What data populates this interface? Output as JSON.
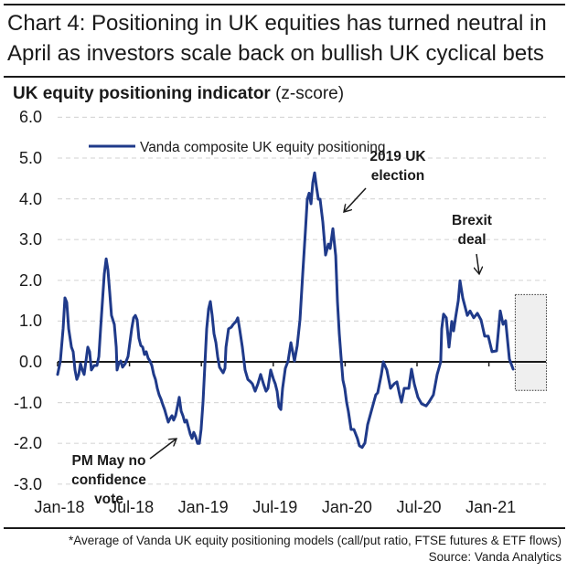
{
  "header": {
    "title": "Chart 4: Positioning in UK equities has turned neutral in April as investors scale back on bullish UK cyclical bets",
    "subtitle_bold": "UK equity positioning indicator",
    "subtitle_normal": " (z-score)"
  },
  "footer": {
    "note": "*Average of Vanda UK equity positioning models (call/put ratio, FTSE futures & ETF flows)",
    "source": "Source: Vanda Analytics"
  },
  "colors": {
    "series": "#1f3a8a",
    "grid": "#d9d9d9",
    "axis": "#1a1a1a",
    "highlight_fill": "#efefef"
  },
  "chart_data": {
    "type": "line",
    "title": "UK equity positioning indicator (z-score)",
    "xlabel": "",
    "ylabel": "z-score",
    "ylim": [
      -3.0,
      6.0
    ],
    "yticks": [
      "6.0",
      "5.0",
      "4.0",
      "3.0",
      "2.0",
      "1.0",
      "0.0",
      "-1.0",
      "-2.0",
      "-3.0"
    ],
    "ytick_values": [
      6,
      5,
      4,
      3,
      2,
      1,
      0,
      -1,
      -2,
      -3
    ],
    "xticks": [
      "Jan-18",
      "Jul-18",
      "Jan-19",
      "Jul-19",
      "Jan-20",
      "Jul-20",
      "Jan-21"
    ],
    "xtick_months": [
      0,
      6,
      12,
      18,
      24,
      30,
      36
    ],
    "xlim_months": [
      0,
      41
    ],
    "x_unit": "months since Jan-2018",
    "grid": true,
    "grid_style": "dashed horizontal",
    "legend": {
      "position": "top-left",
      "entries": [
        "Vanda composite UK equity positioning"
      ]
    },
    "highlight_region_months": [
      38.2,
      40.8
    ],
    "highlight_region_values": [
      -0.7,
      1.65
    ],
    "annotations": [
      {
        "text": "PM May no confidence vote",
        "target_month": 11.4,
        "target_value": -1.85,
        "arrow": "up-right"
      },
      {
        "text": "2019 UK election",
        "target_month": 23.6,
        "target_value": 3.5,
        "arrow": "down-left"
      },
      {
        "text": "Brexit deal",
        "target_month": 35.2,
        "target_value": 2.0,
        "arrow": "down"
      }
    ],
    "series": [
      {
        "name": "Vanda composite UK equity positioning",
        "points": [
          [
            0.0,
            -0.31
          ],
          [
            0.23,
            0.02
          ],
          [
            0.46,
            0.81
          ],
          [
            0.61,
            1.57
          ],
          [
            0.76,
            1.46
          ],
          [
            0.92,
            0.81
          ],
          [
            1.15,
            0.36
          ],
          [
            1.3,
            0.25
          ],
          [
            1.45,
            -0.2
          ],
          [
            1.6,
            -0.43
          ],
          [
            1.76,
            -0.31
          ],
          [
            1.91,
            -0.04
          ],
          [
            2.06,
            -0.2
          ],
          [
            2.21,
            -0.31
          ],
          [
            2.37,
            0.02
          ],
          [
            2.52,
            0.36
          ],
          [
            2.67,
            0.25
          ],
          [
            2.82,
            -0.2
          ],
          [
            3.05,
            -0.09
          ],
          [
            3.28,
            -0.09
          ],
          [
            3.44,
            0.13
          ],
          [
            3.59,
            0.81
          ],
          [
            3.74,
            1.48
          ],
          [
            3.89,
            2.15
          ],
          [
            4.05,
            2.53
          ],
          [
            4.2,
            2.26
          ],
          [
            4.35,
            1.7
          ],
          [
            4.5,
            1.14
          ],
          [
            4.73,
            0.92
          ],
          [
            4.89,
            0.36
          ],
          [
            4.96,
            -0.2
          ],
          [
            5.11,
            -0.04
          ],
          [
            5.27,
            0.02
          ],
          [
            5.42,
            -0.13
          ],
          [
            5.65,
            -0.04
          ],
          [
            5.88,
            0.13
          ],
          [
            6.03,
            0.47
          ],
          [
            6.18,
            0.81
          ],
          [
            6.34,
            1.08
          ],
          [
            6.49,
            1.14
          ],
          [
            6.64,
            1.03
          ],
          [
            6.79,
            0.58
          ],
          [
            6.95,
            0.4
          ],
          [
            7.1,
            0.36
          ],
          [
            7.25,
            0.18
          ],
          [
            7.4,
            0.25
          ],
          [
            7.56,
            0.09
          ],
          [
            7.71,
            0.02
          ],
          [
            7.86,
            -0.09
          ],
          [
            8.02,
            -0.31
          ],
          [
            8.17,
            -0.43
          ],
          [
            8.32,
            -0.65
          ],
          [
            8.47,
            -0.81
          ],
          [
            8.63,
            -0.92
          ],
          [
            8.78,
            -1.05
          ],
          [
            8.93,
            -1.17
          ],
          [
            9.08,
            -1.32
          ],
          [
            9.24,
            -1.48
          ],
          [
            9.39,
            -1.39
          ],
          [
            9.54,
            -1.32
          ],
          [
            9.69,
            -1.43
          ],
          [
            9.85,
            -1.32
          ],
          [
            10.0,
            -1.1
          ],
          [
            10.15,
            -0.87
          ],
          [
            10.31,
            -1.21
          ],
          [
            10.46,
            -1.32
          ],
          [
            10.61,
            -1.48
          ],
          [
            10.76,
            -1.43
          ],
          [
            10.92,
            -1.61
          ],
          [
            11.07,
            -1.77
          ],
          [
            11.22,
            -1.88
          ],
          [
            11.37,
            -1.73
          ],
          [
            11.53,
            -1.84
          ],
          [
            11.68,
            -2.0
          ],
          [
            11.83,
            -2.0
          ],
          [
            11.98,
            -1.66
          ],
          [
            12.14,
            -0.99
          ],
          [
            12.29,
            -0.09
          ],
          [
            12.44,
            0.81
          ],
          [
            12.6,
            1.3
          ],
          [
            12.75,
            1.48
          ],
          [
            12.9,
            1.14
          ],
          [
            13.05,
            0.69
          ],
          [
            13.21,
            0.47
          ],
          [
            13.36,
            0.13
          ],
          [
            13.51,
            -0.13
          ],
          [
            13.66,
            -0.2
          ],
          [
            13.82,
            -0.27
          ],
          [
            13.97,
            -0.16
          ],
          [
            14.05,
            0.36
          ],
          [
            14.27,
            0.81
          ],
          [
            14.5,
            0.85
          ],
          [
            14.66,
            0.92
          ],
          [
            14.89,
            0.99
          ],
          [
            15.04,
            1.08
          ],
          [
            15.19,
            0.81
          ],
          [
            15.42,
            0.36
          ],
          [
            15.65,
            -0.2
          ],
          [
            15.88,
            -0.43
          ],
          [
            16.11,
            -0.49
          ],
          [
            16.26,
            -0.54
          ],
          [
            16.49,
            -0.72
          ],
          [
            16.72,
            -0.54
          ],
          [
            16.95,
            -0.31
          ],
          [
            17.18,
            -0.54
          ],
          [
            17.4,
            -0.72
          ],
          [
            17.56,
            -0.65
          ],
          [
            17.79,
            -0.2
          ],
          [
            18.02,
            -0.43
          ],
          [
            18.17,
            -0.54
          ],
          [
            18.32,
            -0.72
          ],
          [
            18.47,
            -1.1
          ],
          [
            18.63,
            -1.17
          ],
          [
            18.78,
            -0.65
          ],
          [
            19.01,
            -0.16
          ],
          [
            19.24,
            0.02
          ],
          [
            19.47,
            0.47
          ],
          [
            19.77,
            0.02
          ],
          [
            20.0,
            0.4
          ],
          [
            20.23,
            1.03
          ],
          [
            20.46,
            2.15
          ],
          [
            20.69,
            3.23
          ],
          [
            20.84,
            3.99
          ],
          [
            20.99,
            4.14
          ],
          [
            21.15,
            3.88
          ],
          [
            21.3,
            4.39
          ],
          [
            21.45,
            4.64
          ],
          [
            21.6,
            4.3
          ],
          [
            21.76,
            3.99
          ],
          [
            21.91,
            3.99
          ],
          [
            22.14,
            3.43
          ],
          [
            22.37,
            2.62
          ],
          [
            22.6,
            2.89
          ],
          [
            22.75,
            2.78
          ],
          [
            22.98,
            3.27
          ],
          [
            23.21,
            2.6
          ],
          [
            23.36,
            1.48
          ],
          [
            23.51,
            0.69
          ],
          [
            23.66,
            0.13
          ],
          [
            23.82,
            -0.45
          ],
          [
            23.97,
            -0.65
          ],
          [
            24.12,
            -0.99
          ],
          [
            24.27,
            -1.21
          ],
          [
            24.5,
            -1.66
          ],
          [
            24.73,
            -1.66
          ],
          [
            25.02,
            -1.88
          ],
          [
            25.19,
            -2.06
          ],
          [
            25.42,
            -2.1
          ],
          [
            25.65,
            -1.99
          ],
          [
            25.88,
            -1.54
          ],
          [
            26.18,
            -1.21
          ],
          [
            26.56,
            -0.81
          ],
          [
            26.72,
            -0.76
          ],
          [
            27.02,
            -0.31
          ],
          [
            27.18,
            0.0
          ],
          [
            27.48,
            -0.2
          ],
          [
            27.79,
            -0.65
          ],
          [
            28.09,
            -0.54
          ],
          [
            28.32,
            -0.49
          ],
          [
            28.55,
            -0.81
          ],
          [
            28.7,
            -0.99
          ],
          [
            28.93,
            -0.65
          ],
          [
            29.31,
            -0.65
          ],
          [
            29.54,
            -0.18
          ],
          [
            29.77,
            -0.54
          ],
          [
            30.08,
            -0.87
          ],
          [
            30.38,
            -1.03
          ],
          [
            30.76,
            -1.08
          ],
          [
            30.99,
            -0.99
          ],
          [
            31.37,
            -0.81
          ],
          [
            31.68,
            -0.31
          ],
          [
            31.98,
            0.0
          ],
          [
            32.06,
            0.81
          ],
          [
            32.21,
            1.17
          ],
          [
            32.44,
            1.08
          ],
          [
            32.67,
            0.36
          ],
          [
            32.9,
            0.99
          ],
          [
            33.05,
            0.76
          ],
          [
            33.21,
            1.08
          ],
          [
            33.44,
            1.5
          ],
          [
            33.59,
            1.99
          ],
          [
            33.82,
            1.57
          ],
          [
            34.2,
            1.14
          ],
          [
            34.43,
            1.25
          ],
          [
            34.73,
            1.08
          ],
          [
            35.04,
            1.19
          ],
          [
            35.34,
            1.03
          ],
          [
            35.65,
            0.63
          ],
          [
            35.95,
            0.63
          ],
          [
            36.26,
            0.25
          ],
          [
            36.64,
            0.27
          ],
          [
            36.95,
            1.25
          ],
          [
            37.18,
            0.92
          ],
          [
            37.4,
            1.01
          ],
          [
            37.71,
            0.07
          ],
          [
            38.02,
            -0.18
          ]
        ]
      }
    ]
  }
}
